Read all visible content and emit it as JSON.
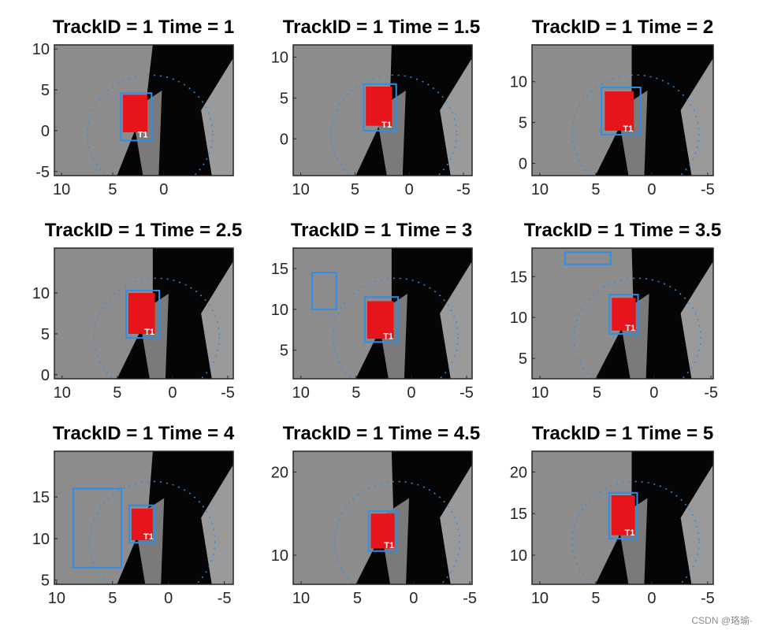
{
  "watermark": "CSDN @珞瑜·",
  "chart_data": [
    {
      "type": "heatmap",
      "title": "TrackID = 1 Time = 1",
      "xlim": [
        10.7,
        -6.8
      ],
      "ylim": [
        -5.5,
        10.5
      ],
      "xticks": [
        10,
        5,
        0
      ],
      "xtick_labels": [
        "10",
        "5",
        "0"
      ],
      "yticks": [
        10,
        5,
        0,
        -5
      ],
      "ytick_labels": [
        "10",
        "5",
        "0",
        "-5"
      ],
      "boxes": [
        {
          "x1": 4.2,
          "x2": 1.2,
          "y1": -1.2,
          "y2": 4.6,
          "color": "#2f8ee8",
          "label": "T1"
        }
      ],
      "red_region": {
        "x1": 4.0,
        "x2": 1.6,
        "y1": -0.2,
        "y2": 4.4
      }
    },
    {
      "type": "heatmap",
      "title": "TrackID = 1 Time = 1.5",
      "xlim": [
        10.7,
        -5.8
      ],
      "ylim": [
        -4.5,
        11.5
      ],
      "xticks": [
        10,
        5,
        0,
        -5
      ],
      "xtick_labels": [
        "10",
        "5",
        "0",
        "-5"
      ],
      "yticks": [
        10,
        5,
        0
      ],
      "ytick_labels": [
        "10",
        "5",
        "0"
      ],
      "boxes": [
        {
          "x1": 4.2,
          "x2": 1.2,
          "y1": 1.0,
          "y2": 6.7,
          "color": "#2f8ee8",
          "label": "T1"
        }
      ],
      "red_region": {
        "x1": 4.0,
        "x2": 1.6,
        "y1": 1.6,
        "y2": 6.4
      }
    },
    {
      "type": "heatmap",
      "title": "TrackID = 1 Time = 2",
      "xlim": [
        10.7,
        -5.5
      ],
      "ylim": [
        -1.5,
        14.5
      ],
      "xticks": [
        10,
        5,
        0,
        -5
      ],
      "xtick_labels": [
        "10",
        "5",
        "0",
        "-5"
      ],
      "yticks": [
        10,
        5,
        0
      ],
      "ytick_labels": [
        "10",
        "5",
        "0"
      ],
      "boxes": [
        {
          "x1": 4.5,
          "x2": 1.0,
          "y1": 3.5,
          "y2": 9.3,
          "color": "#2f8ee8",
          "label": "T1"
        }
      ],
      "red_region": {
        "x1": 4.2,
        "x2": 1.6,
        "y1": 4.0,
        "y2": 8.8
      }
    },
    {
      "type": "heatmap",
      "title": "TrackID = 1 Time = 2.5",
      "xlim": [
        10.7,
        -5.5
      ],
      "ylim": [
        -0.5,
        15.5
      ],
      "xticks": [
        10,
        5,
        0,
        -5
      ],
      "xtick_labels": [
        "10",
        "5",
        "0",
        "-5"
      ],
      "yticks": [
        10,
        5,
        0
      ],
      "ytick_labels": [
        "10",
        "5",
        "0"
      ],
      "boxes": [
        {
          "x1": 4.2,
          "x2": 1.2,
          "y1": 4.5,
          "y2": 10.3,
          "color": "#2f8ee8",
          "label": "T1"
        }
      ],
      "red_region": {
        "x1": 4.0,
        "x2": 1.6,
        "y1": 5.0,
        "y2": 10.0
      }
    },
    {
      "type": "heatmap",
      "title": "TrackID = 1 Time = 3",
      "xlim": [
        10.7,
        -5.5
      ],
      "ylim": [
        1.5,
        17.5
      ],
      "xticks": [
        10,
        5,
        0,
        -5
      ],
      "xtick_labels": [
        "10",
        "5",
        "0",
        "-5"
      ],
      "yticks": [
        15,
        10,
        5
      ],
      "ytick_labels": [
        "15",
        "10",
        "5"
      ],
      "boxes": [
        {
          "x1": 9.0,
          "x2": 6.8,
          "y1": 10.0,
          "y2": 14.5,
          "color": "#2f8ee8",
          "label": ""
        },
        {
          "x1": 4.2,
          "x2": 1.2,
          "y1": 6.0,
          "y2": 11.5,
          "color": "#2f8ee8",
          "label": "T1"
        }
      ],
      "red_region": {
        "x1": 4.0,
        "x2": 1.6,
        "y1": 6.4,
        "y2": 11.0
      }
    },
    {
      "type": "heatmap",
      "title": "TrackID = 1 Time = 3.5",
      "xlim": [
        10.7,
        -5.2
      ],
      "ylim": [
        2.5,
        18.5
      ],
      "xticks": [
        10,
        5,
        0,
        -5
      ],
      "xtick_labels": [
        "10",
        "5",
        "0",
        "-5"
      ],
      "yticks": [
        15,
        10,
        5
      ],
      "ytick_labels": [
        "15",
        "10",
        "5"
      ],
      "boxes": [
        {
          "x1": 7.8,
          "x2": 3.8,
          "y1": 16.5,
          "y2": 18.0,
          "color": "#2f8ee8",
          "label": ""
        },
        {
          "x1": 3.9,
          "x2": 1.4,
          "y1": 8.0,
          "y2": 12.8,
          "color": "#2f8ee8",
          "label": "T1"
        }
      ],
      "red_region": {
        "x1": 3.7,
        "x2": 1.6,
        "y1": 8.4,
        "y2": 12.4
      }
    },
    {
      "type": "heatmap",
      "title": "TrackID = 1 Time = 4",
      "xlim": [
        10.2,
        -5.8
      ],
      "ylim": [
        4.5,
        20.5
      ],
      "xticks": [
        10,
        5,
        0,
        -5
      ],
      "xtick_labels": [
        "10",
        "5",
        "0",
        "-5"
      ],
      "yticks": [
        15,
        10,
        5
      ],
      "ytick_labels": [
        "15",
        "10",
        "5"
      ],
      "boxes": [
        {
          "x1": 8.5,
          "x2": 4.2,
          "y1": 6.5,
          "y2": 16.0,
          "color": "#2f8ee8",
          "label": ""
        },
        {
          "x1": 3.5,
          "x2": 1.2,
          "y1": 9.5,
          "y2": 14.0,
          "color": "#2f8ee8",
          "label": "T1"
        }
      ],
      "red_region": {
        "x1": 3.3,
        "x2": 1.4,
        "y1": 9.8,
        "y2": 13.6
      }
    },
    {
      "type": "heatmap",
      "title": "TrackID = 1 Time = 4.5",
      "xlim": [
        10.7,
        -5.2
      ],
      "ylim": [
        6.5,
        22.5
      ],
      "xticks": [
        10,
        5,
        0,
        -5
      ],
      "xtick_labels": [
        "10",
        "5",
        "0",
        "-5"
      ],
      "yticks": [
        20,
        10
      ],
      "ytick_labels": [
        "20",
        "10"
      ],
      "boxes": [
        {
          "x1": 4.0,
          "x2": 1.5,
          "y1": 10.5,
          "y2": 15.3,
          "color": "#2f8ee8",
          "label": "T1"
        }
      ],
      "red_region": {
        "x1": 3.8,
        "x2": 1.7,
        "y1": 10.8,
        "y2": 15.0
      }
    },
    {
      "type": "heatmap",
      "title": "TrackID = 1 Time = 5",
      "xlim": [
        10.7,
        -5.5
      ],
      "ylim": [
        6.5,
        22.5
      ],
      "xticks": [
        10,
        5,
        0,
        -5
      ],
      "xtick_labels": [
        "10",
        "5",
        "0",
        "-5"
      ],
      "yticks": [
        20,
        15,
        10
      ],
      "ytick_labels": [
        "20",
        "15",
        "10"
      ],
      "boxes": [
        {
          "x1": 3.8,
          "x2": 1.3,
          "y1": 12.0,
          "y2": 17.5,
          "color": "#2f8ee8",
          "label": "T1"
        }
      ],
      "red_region": {
        "x1": 3.6,
        "x2": 1.5,
        "y1": 12.4,
        "y2": 17.2
      }
    }
  ]
}
